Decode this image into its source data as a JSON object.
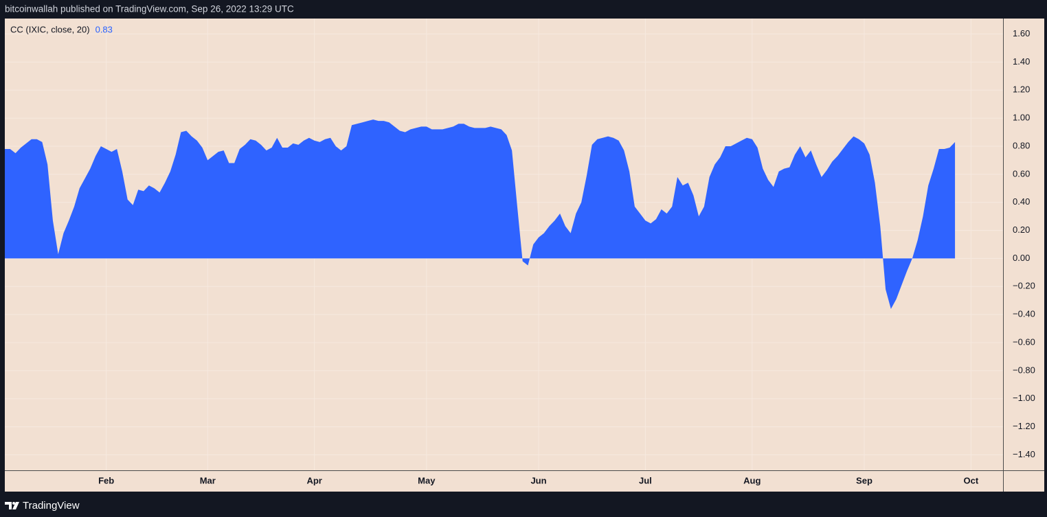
{
  "header": "bitcoinwallah published on TradingView.com, Sep 26, 2022 13:29 UTC",
  "footer": "TradingView",
  "chart_data": {
    "type": "area",
    "title": "CC (IXIC, close, 20)",
    "color": "#2f63ff",
    "values": [
      0.78,
      0.78,
      0.75,
      0.79,
      0.82,
      0.85,
      0.85,
      0.83,
      0.67,
      0.27,
      0.03,
      0.18,
      0.27,
      0.37,
      0.5,
      0.57,
      0.64,
      0.73,
      0.8,
      0.78,
      0.76,
      0.78,
      0.62,
      0.42,
      0.38,
      0.49,
      0.48,
      0.52,
      0.5,
      0.47,
      0.54,
      0.62,
      0.74,
      0.9,
      0.91,
      0.87,
      0.84,
      0.79,
      0.7,
      0.73,
      0.76,
      0.77,
      0.68,
      0.68,
      0.78,
      0.81,
      0.85,
      0.84,
      0.81,
      0.77,
      0.79,
      0.86,
      0.79,
      0.79,
      0.82,
      0.81,
      0.84,
      0.86,
      0.84,
      0.83,
      0.85,
      0.86,
      0.8,
      0.77,
      0.8,
      0.95,
      0.96,
      0.97,
      0.98,
      0.99,
      0.98,
      0.98,
      0.97,
      0.94,
      0.91,
      0.9,
      0.92,
      0.93,
      0.94,
      0.94,
      0.92,
      0.92,
      0.92,
      0.93,
      0.94,
      0.96,
      0.96,
      0.94,
      0.93,
      0.93,
      0.93,
      0.94,
      0.93,
      0.92,
      0.88,
      0.77,
      0.37,
      -0.02,
      -0.05,
      0.1,
      0.15,
      0.18,
      0.23,
      0.27,
      0.32,
      0.23,
      0.18,
      0.32,
      0.4,
      0.59,
      0.81,
      0.85,
      0.86,
      0.87,
      0.86,
      0.84,
      0.77,
      0.62,
      0.37,
      0.32,
      0.27,
      0.25,
      0.28,
      0.35,
      0.32,
      0.37,
      0.58,
      0.52,
      0.54,
      0.45,
      0.3,
      0.37,
      0.58,
      0.67,
      0.72,
      0.8,
      0.8,
      0.82,
      0.84,
      0.86,
      0.85,
      0.79,
      0.64,
      0.56,
      0.51,
      0.62,
      0.64,
      0.65,
      0.74,
      0.8,
      0.72,
      0.77,
      0.67,
      0.58,
      0.63,
      0.69,
      0.73,
      0.78,
      0.83,
      0.87,
      0.85,
      0.82,
      0.74,
      0.54,
      0.23,
      -0.22,
      -0.36,
      -0.29,
      -0.19,
      -0.09,
      0.0,
      0.13,
      0.3,
      0.52,
      0.64,
      0.78,
      0.78,
      0.79,
      0.83
    ],
    "xlim": [
      0,
      187
    ],
    "xticks": [
      {
        "value": 19,
        "label": "Feb"
      },
      {
        "value": 38,
        "label": "Mar"
      },
      {
        "value": 58,
        "label": "Apr"
      },
      {
        "value": 79,
        "label": "May"
      },
      {
        "value": 100,
        "label": "Jun"
      },
      {
        "value": 120,
        "label": "Jul"
      },
      {
        "value": 140,
        "label": "Aug"
      },
      {
        "value": 161,
        "label": "Sep"
      },
      {
        "value": 181,
        "label": "Oct"
      }
    ],
    "ylim": [
      -1.51,
      1.71
    ],
    "yticks": [
      {
        "value": 1.6,
        "label": "1.60"
      },
      {
        "value": 1.4,
        "label": "1.40"
      },
      {
        "value": 1.2,
        "label": "1.20"
      },
      {
        "value": 1,
        "label": "1.00"
      },
      {
        "value": 0.8,
        "label": "0.80"
      },
      {
        "value": 0.6,
        "label": "0.60"
      },
      {
        "value": 0.4,
        "label": "0.40"
      },
      {
        "value": 0.2,
        "label": "0.20"
      },
      {
        "value": 0,
        "label": "0.00"
      },
      {
        "value": -0.2,
        "label": "−0.20"
      },
      {
        "value": -0.4,
        "label": "−0.40"
      },
      {
        "value": -0.6,
        "label": "−0.60"
      },
      {
        "value": -0.8,
        "label": "−0.80"
      },
      {
        "value": -1,
        "label": "−1.00"
      },
      {
        "value": -1.2,
        "label": "−1.20"
      },
      {
        "value": -1.4,
        "label": "−1.40"
      }
    ],
    "grid": true
  }
}
